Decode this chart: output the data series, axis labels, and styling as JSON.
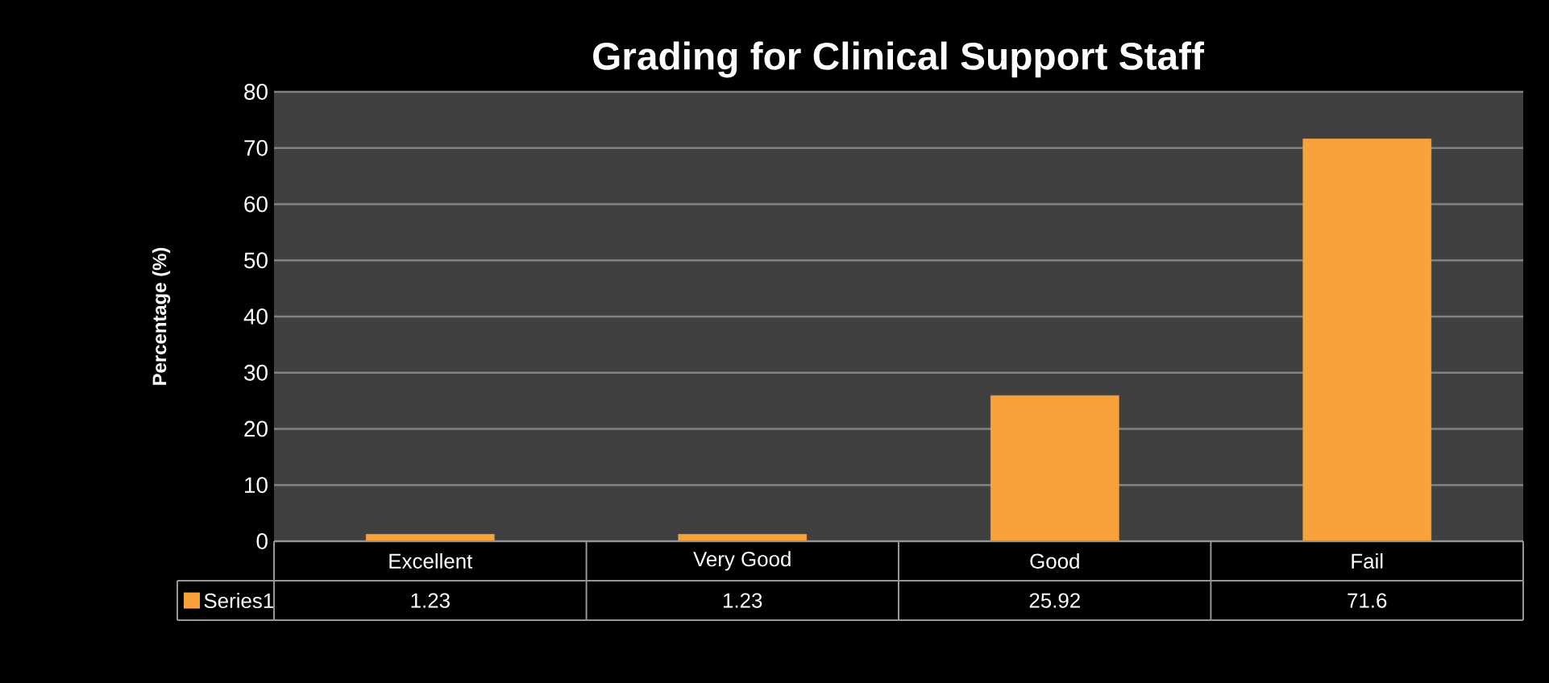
{
  "chart_data": {
    "type": "bar",
    "title": "Grading for Clinical Support Staff",
    "ylabel": "Percentage (%)",
    "categories": [
      "Excellent",
      "Very Good",
      "Good",
      "Fail"
    ],
    "series": [
      {
        "name": "Series1",
        "color": "#f7a23a",
        "values": [
          1.23,
          1.23,
          25.92,
          71.6
        ]
      }
    ],
    "ylim": [
      0,
      80
    ],
    "yticks": [
      0,
      10,
      20,
      30,
      40,
      50,
      60,
      70,
      80
    ],
    "grid": "y",
    "data_labels": true,
    "legend": "bottom"
  }
}
